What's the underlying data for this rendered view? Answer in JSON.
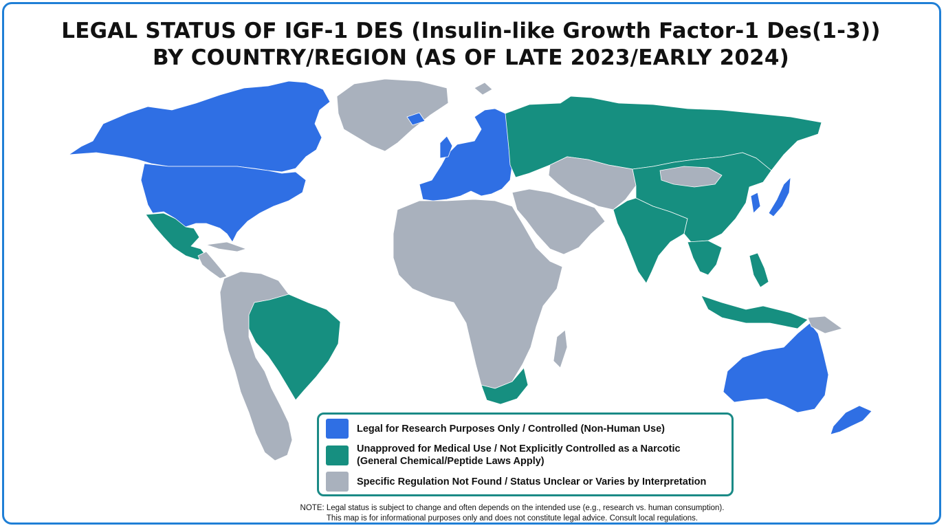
{
  "map": {
    "title_line1": "LEGAL STATUS OF IGF-1 DES (Insulin-like Growth Factor-1 Des(1-3))",
    "title_line2": "BY COUNTRY/REGION (AS OF LATE 2023/EARLY 2024)",
    "colors": {
      "research_controlled": "#2f6fe4",
      "unapproved": "#168f80",
      "unclear": "#a9b1bd",
      "border": "#1f7fd6",
      "legend_border": "#1a8a86"
    },
    "legend": [
      {
        "category": "research_controlled",
        "label": "Legal for Research Purposes Only / Controlled (Non-Human Use)"
      },
      {
        "category": "unapproved",
        "label": "Unapproved for Medical Use / Not Explicitly Controlled as a Narcotic\n(General Chemical/Peptide Laws Apply)"
      },
      {
        "category": "unclear",
        "label": "Specific Regulation Not Found / Status Unclear or Varies by Interpretation"
      }
    ],
    "note_line1": "NOTE: Legal status is subject to change and often depends on the intended use (e.g., research vs. human consumption).",
    "note_line2": "This map is for informational purposes only and does not constitute legal advice. Consult local regulations."
  }
}
